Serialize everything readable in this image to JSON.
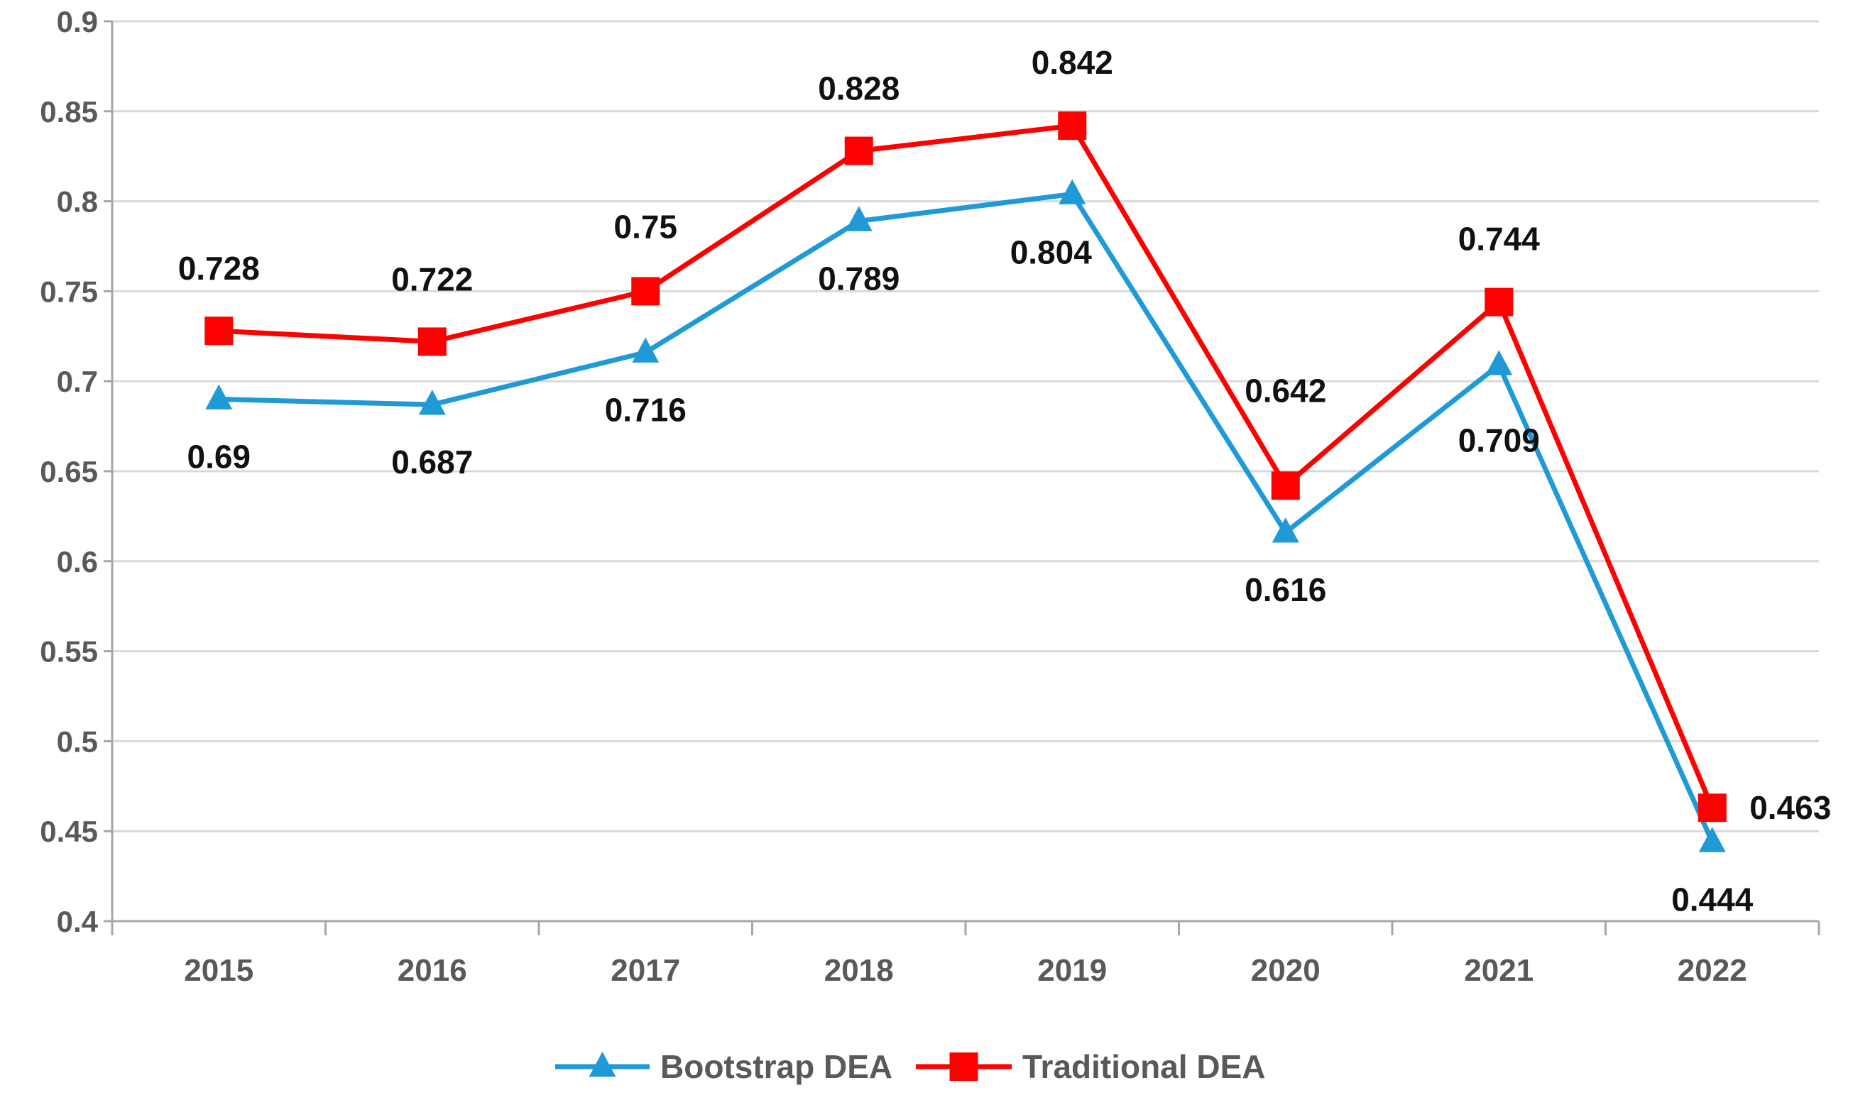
{
  "chart_data": {
    "type": "line",
    "title": "",
    "xlabel": "",
    "ylabel": "",
    "categories": [
      "2015",
      "2016",
      "2017",
      "2018",
      "2019",
      "2020",
      "2021",
      "2022"
    ],
    "ylim": [
      0.4,
      0.9
    ],
    "yticks": [
      0.4,
      0.45,
      0.5,
      0.55,
      0.6,
      0.65,
      0.7,
      0.75,
      0.8,
      0.85,
      0.9
    ],
    "ytick_labels": [
      "0.4",
      "0.45",
      "0.5",
      "0.55",
      "0.6",
      "0.65",
      "0.7",
      "0.75",
      "0.8",
      "0.85",
      "0.9"
    ],
    "grid": true,
    "legend_position": "bottom-center",
    "series": [
      {
        "name": "Bootstrap DEA",
        "color": "#1f9ad6",
        "marker": "triangle",
        "values": [
          0.69,
          0.687,
          0.716,
          0.789,
          0.804,
          0.616,
          0.709,
          0.444
        ],
        "labels": [
          "0.69",
          "0.687",
          "0.716",
          "0.789",
          "0.804",
          "0.616",
          "0.709",
          "0.444"
        ]
      },
      {
        "name": "Traditional DEA",
        "color": "#ff0000",
        "marker": "square",
        "values": [
          0.728,
          0.722,
          0.75,
          0.828,
          0.842,
          0.642,
          0.744,
          0.463
        ],
        "labels": [
          "0.728",
          "0.722",
          "0.75",
          "0.828",
          "0.842",
          "0.642",
          "0.744",
          "0.463"
        ]
      }
    ]
  }
}
